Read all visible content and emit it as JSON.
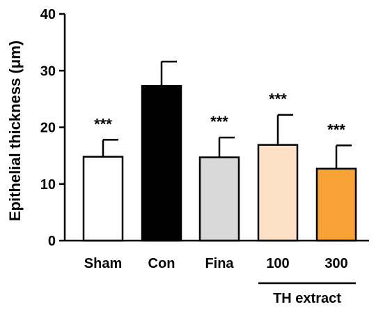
{
  "chart_data": {
    "type": "bar",
    "categories": [
      "Sham",
      "Con",
      "Fina",
      "100",
      "300"
    ],
    "values": [
      14.8,
      27.3,
      14.7,
      16.9,
      12.7
    ],
    "errors": [
      3.0,
      4.3,
      3.5,
      5.3,
      4.1
    ],
    "significance": [
      "***",
      "",
      "***",
      "***",
      "***"
    ],
    "bar_colors": [
      "#ffffff",
      "#000000",
      "#d9d9d9",
      "#fde0c5",
      "#f9a336"
    ],
    "ylabel": "Epithelial thickness (μm)",
    "ylim": [
      0,
      40
    ],
    "yticks": [
      "0",
      "10",
      "20",
      "30",
      "40"
    ],
    "group_label": "TH extract",
    "grid": false
  }
}
